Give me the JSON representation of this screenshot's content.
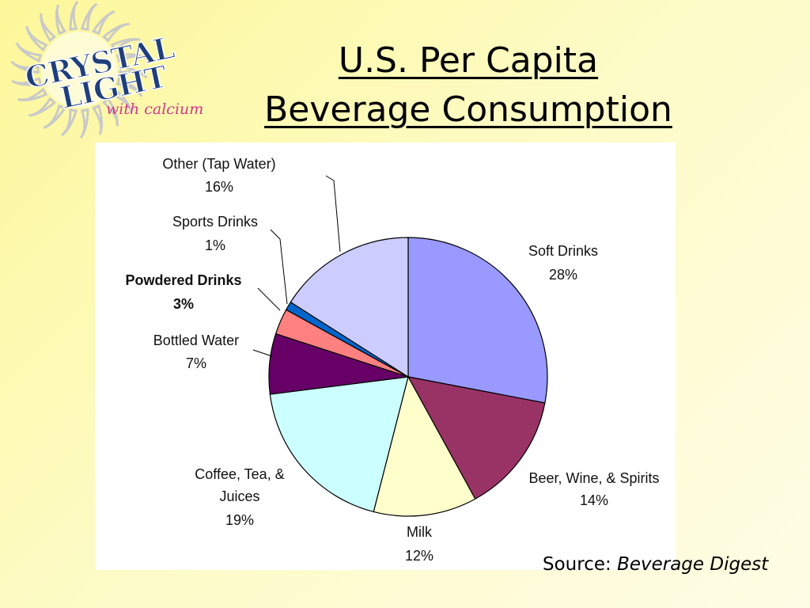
{
  "logo": {
    "brand_line1": "CRYSTAL",
    "brand_line2": "LIGHT",
    "tagline": "with calcium",
    "sun_color": "#c9c9c9",
    "brand_color": "#1f3f7a",
    "tagline_color": "#d0388a"
  },
  "slide": {
    "title_line1": "U.S. Per Capita",
    "title_line2": "Beverage Consumption",
    "source_prefix": "Source: ",
    "source_name": "Beverage Digest"
  },
  "chart_data": {
    "type": "pie",
    "title": "",
    "start_angle_deg": 0,
    "direction": "clockwise",
    "slices": [
      {
        "label": "Soft Drinks",
        "value": 28,
        "value_label": "28%",
        "color": "#9999ff",
        "bold": false
      },
      {
        "label": "Beer, Wine, & Spirits",
        "value": 14,
        "value_label": "14%",
        "color": "#993366",
        "bold": false
      },
      {
        "label": "Milk",
        "value": 12,
        "value_label": "12%",
        "color": "#ffffcc",
        "bold": false
      },
      {
        "label": "Coffee, Tea, & Juices",
        "value": 19,
        "value_label": "19%",
        "color": "#ccffff",
        "bold": false
      },
      {
        "label": "Bottled Water",
        "value": 7,
        "value_label": "7%",
        "color": "#660066",
        "bold": false
      },
      {
        "label": "Powdered Drinks",
        "value": 3,
        "value_label": "3%",
        "color": "#ff8080",
        "bold": true
      },
      {
        "label": "Sports Drinks",
        "value": 1,
        "value_label": "1%",
        "color": "#0066cc",
        "bold": false
      },
      {
        "label": "Other (Tap Water)",
        "value": 16,
        "value_label": "16%",
        "color": "#ccccff",
        "bold": false
      }
    ]
  }
}
